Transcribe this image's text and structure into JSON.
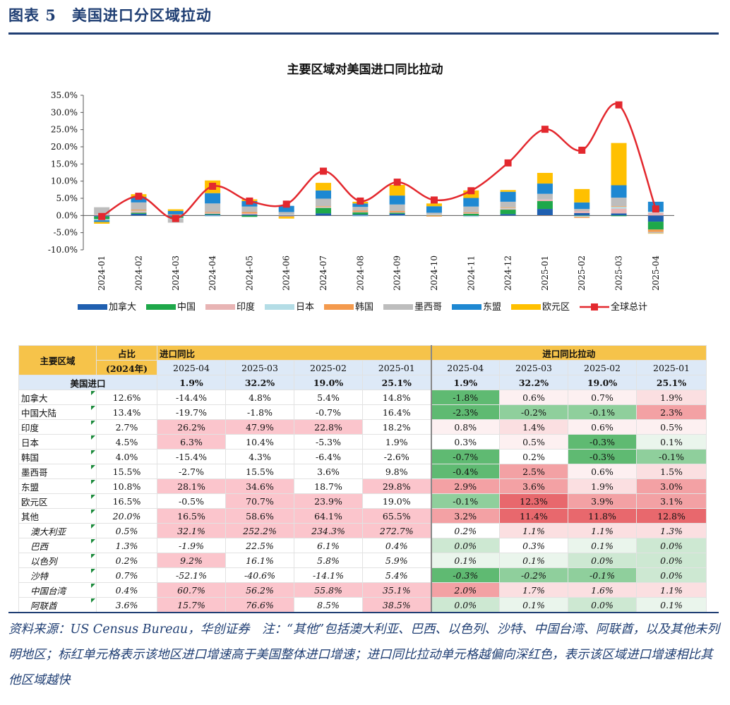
{
  "figure": {
    "title": "图表 5　美国进口分区域拉动"
  },
  "chart_data": {
    "type": "bar",
    "title": "主要区域对美国进口同比拉动",
    "categories": [
      "2024-01",
      "2024-02",
      "2024-03",
      "2024-04",
      "2024-05",
      "2024-06",
      "2024-07",
      "2024-08",
      "2024-09",
      "2024-10",
      "2024-11",
      "2024-12",
      "2025-01",
      "2025-02",
      "2025-03",
      "2025-04"
    ],
    "ylim": [
      -10,
      35
    ],
    "yticks": [
      "-10.0%",
      "-5.0%",
      "0.0%",
      "5.0%",
      "10.0%",
      "15.0%",
      "20.0%",
      "25.0%",
      "30.0%",
      "35.0%"
    ],
    "series": [
      {
        "name": "加拿大",
        "color": "#1f5fb0",
        "values": [
          -0.3,
          0.5,
          -0.3,
          0.3,
          0.3,
          -0.2,
          0.6,
          0.3,
          0.5,
          0.0,
          -0.1,
          0.4,
          1.9,
          0.7,
          0.6,
          -1.8
        ]
      },
      {
        "name": "中国",
        "color": "#1ea84a",
        "values": [
          -0.8,
          0.3,
          -0.4,
          0.2,
          -0.4,
          0.0,
          1.6,
          0.6,
          0.3,
          0.1,
          0.5,
          1.3,
          2.3,
          -0.1,
          -0.2,
          -2.3
        ]
      },
      {
        "name": "印度",
        "color": "#e8b4b4",
        "values": [
          0.3,
          0.4,
          0.1,
          0.3,
          0.3,
          0.1,
          0.2,
          0.2,
          0.2,
          0.1,
          0.2,
          0.3,
          0.5,
          0.6,
          1.4,
          0.8
        ]
      },
      {
        "name": "日本",
        "color": "#b4dde6",
        "values": [
          -0.3,
          0.2,
          -0.3,
          -0.3,
          0.0,
          0.1,
          0.1,
          -0.3,
          -0.1,
          0.1,
          -0.3,
          0.2,
          0.1,
          -0.3,
          0.5,
          0.3
        ]
      },
      {
        "name": "韩国",
        "color": "#f49a4d",
        "values": [
          0.0,
          0.3,
          0.2,
          0.2,
          0.4,
          -0.2,
          0.2,
          0.3,
          0.3,
          -0.3,
          0.2,
          0.2,
          -0.1,
          -0.3,
          0.2,
          -0.7
        ]
      },
      {
        "name": "墨西哥",
        "color": "#bdbdbd",
        "values": [
          2.1,
          2.1,
          -1.1,
          2.5,
          1.6,
          0.8,
          2.2,
          1.1,
          1.9,
          0.5,
          1.7,
          1.6,
          1.5,
          0.6,
          2.5,
          -0.4
        ]
      },
      {
        "name": "东盟",
        "color": "#1e88d2",
        "values": [
          -0.5,
          1.6,
          1.0,
          3.0,
          1.6,
          1.8,
          2.4,
          1.0,
          2.6,
          1.9,
          2.5,
          2.9,
          3.0,
          1.9,
          3.6,
          2.9
        ]
      },
      {
        "name": "欧元区",
        "color": "#ffc000",
        "values": [
          -0.5,
          0.8,
          0.5,
          3.7,
          0.5,
          -0.5,
          2.2,
          0.5,
          3.1,
          0.8,
          2.2,
          0.5,
          3.1,
          3.9,
          12.3,
          -0.1
        ]
      }
    ],
    "line": {
      "name": "全球总计",
      "color": "#e3282e",
      "values": [
        -0.3,
        5.6,
        -0.9,
        8.5,
        4.2,
        3.3,
        12.9,
        4.2,
        9.7,
        4.5,
        7.2,
        15.3,
        25.1,
        19.0,
        32.2,
        1.9
      ]
    }
  },
  "table": {
    "h_region": "主要区域",
    "h_share": "占比",
    "h_share_year": "(2024年)",
    "h_yoy": "进口同比",
    "h_pull": "进口同比拉动",
    "months": [
      "2025-04",
      "2025-03",
      "2025-02",
      "2025-01"
    ],
    "us": {
      "label": "美国进口",
      "yoy": [
        "1.9%",
        "32.2%",
        "19.0%",
        "25.1%"
      ],
      "pull": [
        "1.9%",
        "32.2%",
        "19.0%",
        "25.1%"
      ]
    },
    "rows": [
      {
        "name": "加拿大",
        "share": "12.6%",
        "yoy": [
          "-14.4%",
          "4.8%",
          "5.4%",
          "14.8%"
        ],
        "pull": [
          "-1.8%",
          "0.6%",
          "0.7%",
          "1.9%"
        ]
      },
      {
        "name": "中国大陆",
        "share": "13.4%",
        "yoy": [
          "-19.7%",
          "-1.8%",
          "-0.7%",
          "16.4%"
        ],
        "pull": [
          "-2.3%",
          "-0.2%",
          "-0.1%",
          "2.3%"
        ]
      },
      {
        "name": "印度",
        "share": "2.7%",
        "yoy": [
          "26.2%",
          "47.9%",
          "22.8%",
          "18.2%"
        ],
        "pull": [
          "0.8%",
          "1.4%",
          "0.6%",
          "0.5%"
        ]
      },
      {
        "name": "日本",
        "share": "4.5%",
        "yoy": [
          "6.3%",
          "10.4%",
          "-5.3%",
          "1.9%"
        ],
        "pull": [
          "0.3%",
          "0.5%",
          "-0.3%",
          "0.1%"
        ]
      },
      {
        "name": "韩国",
        "share": "4.0%",
        "yoy": [
          "-15.4%",
          "4.3%",
          "-6.4%",
          "-2.6%"
        ],
        "pull": [
          "-0.7%",
          "0.2%",
          "-0.3%",
          "-0.1%"
        ]
      },
      {
        "name": "墨西哥",
        "share": "15.5%",
        "yoy": [
          "-2.7%",
          "15.5%",
          "3.6%",
          "9.8%"
        ],
        "pull": [
          "-0.4%",
          "2.5%",
          "0.6%",
          "1.5%"
        ]
      },
      {
        "name": "东盟",
        "share": "10.8%",
        "yoy": [
          "28.1%",
          "34.6%",
          "18.7%",
          "29.8%"
        ],
        "pull": [
          "2.9%",
          "3.6%",
          "1.9%",
          "3.0%"
        ]
      },
      {
        "name": "欧元区",
        "share": "16.5%",
        "yoy": [
          "-0.5%",
          "70.7%",
          "23.9%",
          "19.0%"
        ],
        "pull": [
          "-0.1%",
          "12.3%",
          "3.9%",
          "3.1%"
        ]
      },
      {
        "name": "其他",
        "share": "20.0%",
        "yoy": [
          "16.5%",
          "58.6%",
          "64.1%",
          "65.5%"
        ],
        "pull": [
          "3.2%",
          "11.4%",
          "11.8%",
          "12.8%"
        ]
      },
      {
        "name": "澳大利亚",
        "share": "0.5%",
        "yoy": [
          "32.1%",
          "252.2%",
          "234.3%",
          "272.7%"
        ],
        "pull": [
          "0.2%",
          "1.1%",
          "1.1%",
          "1.3%"
        ]
      },
      {
        "name": "巴西",
        "share": "1.3%",
        "yoy": [
          "-1.9%",
          "22.5%",
          "6.1%",
          "0.4%"
        ],
        "pull": [
          "0.0%",
          "0.3%",
          "0.1%",
          "0.0%"
        ]
      },
      {
        "name": "以色列",
        "share": "0.2%",
        "yoy": [
          "9.2%",
          "16.1%",
          "5.8%",
          "5.9%"
        ],
        "pull": [
          "0.1%",
          "0.1%",
          "0.0%",
          "0.0%"
        ]
      },
      {
        "name": "沙特",
        "share": "0.7%",
        "yoy": [
          "-52.1%",
          "-40.6%",
          "-14.1%",
          "5.4%"
        ],
        "pull": [
          "-0.3%",
          "-0.2%",
          "-0.1%",
          "0.0%"
        ]
      },
      {
        "name": "中国台湾",
        "share": "0.4%",
        "yoy": [
          "60.7%",
          "56.2%",
          "55.8%",
          "35.1%"
        ],
        "pull": [
          "2.0%",
          "1.7%",
          "1.6%",
          "1.1%"
        ]
      },
      {
        "name": "阿联酋",
        "share": "3.6%",
        "yoy": [
          "15.7%",
          "76.6%",
          "8.5%",
          "38.5%"
        ],
        "pull": [
          "0.0%",
          "0.1%",
          "0.0%",
          "0.1%"
        ]
      }
    ]
  },
  "footnote": "资料来源：US Census Bureau，华创证券　注：“其他”包括澳大利亚、巴西、以色列、沙特、中国台湾、阿联酋，以及其他未列明地区；标红单元格表示该地区进口增速高于美国整体进口增速；进口同比拉动单元格越偏向深红色，表示该区域进口增速相比其他区域越快"
}
